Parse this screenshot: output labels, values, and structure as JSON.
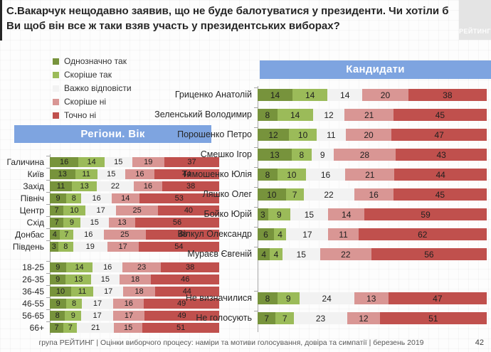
{
  "title": "С.Вакарчук нещодавно заявив, що не буде балотуватися у президенти. Чи хотіли б Ви щоб він все ж таки взяв участь у президентських виборах?",
  "logo_text": "РЕЙТИНГ",
  "colors": {
    "answer_colors": [
      "#77933C",
      "#9BBB59",
      "#F2F2F2",
      "#D99694",
      "#C0504D"
    ],
    "header_bg": "#7EA4E0",
    "title_accent": "#262626"
  },
  "legend": {
    "items": [
      {
        "label": "Однозначно так",
        "color": "#77933C"
      },
      {
        "label": "Скоріше так",
        "color": "#9BBB59"
      },
      {
        "label": "Важко відповісти",
        "color": "#F2F2F2"
      },
      {
        "label": "Скоріше ні",
        "color": "#D99694"
      },
      {
        "label": "Точно ні",
        "color": "#C0504D"
      }
    ]
  },
  "chart_data": [
    {
      "type": "bar",
      "subtype": "stacked-horizontal-percent",
      "title": "Регіони. Вік",
      "legend_position": "top-left",
      "xlim": [
        0,
        100
      ],
      "categories": [
        "Галичина",
        "Київ",
        "Захід",
        "Північ",
        "Центр",
        "Схід",
        "Донбас",
        "Південь",
        "18-25",
        "26-35",
        "36-45",
        "46-55",
        "56-65",
        "66+"
      ],
      "gap_after": [
        7
      ],
      "series": [
        {
          "name": "Однозначно так",
          "values": [
            16,
            13,
            11,
            9,
            7,
            7,
            4,
            3,
            9,
            9,
            10,
            9,
            8,
            7
          ]
        },
        {
          "name": "Скоріше так",
          "values": [
            14,
            11,
            13,
            8,
            10,
            9,
            7,
            8,
            14,
            13,
            11,
            8,
            9,
            7
          ]
        },
        {
          "name": "Важко відповісти",
          "values": [
            15,
            15,
            22,
            16,
            17,
            15,
            16,
            19,
            16,
            15,
            17,
            17,
            17,
            21
          ]
        },
        {
          "name": "Скоріше ні",
          "values": [
            19,
            16,
            16,
            14,
            25,
            13,
            25,
            17,
            23,
            18,
            18,
            16,
            17,
            15
          ]
        },
        {
          "name": "Точно ні",
          "values": [
            37,
            44,
            38,
            53,
            40,
            56,
            48,
            54,
            38,
            46,
            44,
            49,
            49,
            51
          ]
        }
      ]
    },
    {
      "type": "bar",
      "subtype": "stacked-horizontal-percent",
      "title": "Кандидати",
      "xlim": [
        0,
        100
      ],
      "categories": [
        "Гриценко Анатолій",
        "Зеленський Володимир",
        "Порошенко Петро",
        "Смешко Ігор",
        "Тимошенко Юлія",
        "Ляшко Олег",
        "Бойко Юрій",
        "Вілкул Олександр",
        "Мураєв Євгеній",
        "Не визначилися",
        "Не голосують"
      ],
      "gap_after": [
        8
      ],
      "series": [
        {
          "name": "Однозначно так",
          "values": [
            14,
            8,
            12,
            13,
            8,
            10,
            3,
            6,
            4,
            8,
            7
          ]
        },
        {
          "name": "Скоріше так",
          "values": [
            14,
            14,
            10,
            8,
            10,
            7,
            9,
            4,
            4,
            9,
            7
          ]
        },
        {
          "name": "Важко відповісти",
          "values": [
            14,
            12,
            11,
            9,
            16,
            22,
            15,
            17,
            15,
            24,
            23
          ]
        },
        {
          "name": "Скоріше ні",
          "values": [
            20,
            21,
            20,
            28,
            21,
            16,
            14,
            11,
            22,
            13,
            12
          ]
        },
        {
          "name": "Точно ні",
          "values": [
            38,
            45,
            47,
            43,
            44,
            45,
            59,
            62,
            56,
            47,
            51
          ]
        }
      ]
    }
  ],
  "footer": {
    "text": "група РЕЙТИНГ | Оцінки виборчого процесу: наміри та мотиви голосування, довіра та симпатії | березень 2019",
    "page": "42"
  }
}
